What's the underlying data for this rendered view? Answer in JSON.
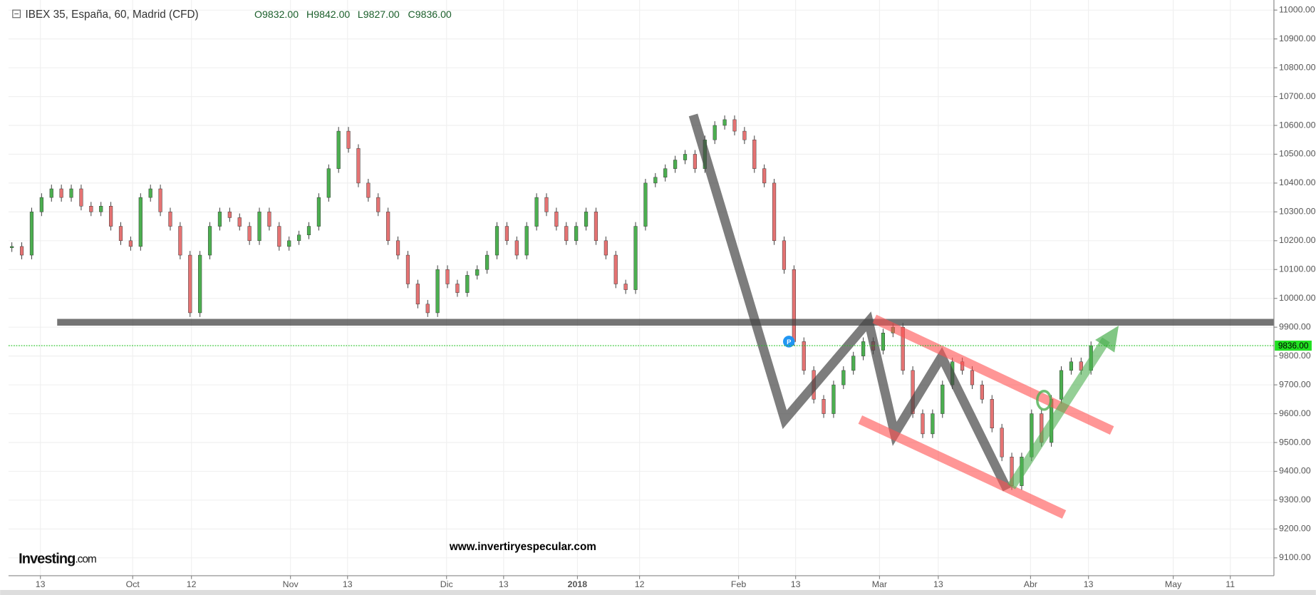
{
  "header": {
    "symbol": "IBEX 35, España, 60, Madrid (CFD)",
    "open": "O9832.00",
    "high": "H9842.00",
    "low": "L9827.00",
    "close": "C9836.00"
  },
  "watermark": "www.invertiryespecular.com",
  "logo": "Investing",
  "logo_suffix": ".com",
  "chart_data": {
    "type": "candlestick",
    "closes": [
      10180,
      10150,
      10300,
      10350,
      10380,
      10350,
      10380,
      10320,
      10300,
      10320,
      10250,
      10200,
      10180,
      10350,
      10380,
      10300,
      10250,
      10150,
      9950,
      10150,
      10250,
      10300,
      10280,
      10250,
      10200,
      10300,
      10250,
      10180,
      10200,
      10220,
      10250,
      10350,
      10450,
      10580,
      10520,
      10400,
      10350,
      10300,
      10200,
      10150,
      10050,
      9980,
      9950,
      10100,
      10050,
      10020,
      10080,
      10100,
      10150,
      10250,
      10200,
      10150,
      10250,
      10350,
      10300,
      10250,
      10200,
      10250,
      10300,
      10200,
      10150,
      10050,
      10030,
      10250,
      10400,
      10420,
      10450,
      10480,
      10500,
      10450,
      10550,
      10600,
      10620,
      10580,
      10550,
      10450,
      10400,
      10200,
      10100,
      9850,
      9750,
      9650,
      9600,
      9700,
      9750,
      9800,
      9850,
      9820,
      9880,
      9900,
      9750,
      9600,
      9530,
      9600,
      9700,
      9780,
      9750,
      9700,
      9650,
      9550,
      9450,
      9350,
      9450,
      9600,
      9500,
      9650,
      9750,
      9780,
      9750,
      9836
    ],
    "up_color": "#4caf50",
    "down_color": "#e57373",
    "xtick_labels": [
      "13",
      "Oct",
      "12",
      "Nov",
      "13",
      "Dic",
      "13",
      "2018",
      "12",
      "Feb",
      "13",
      "Mar",
      "13",
      "Abr",
      "13",
      "May",
      "11"
    ],
    "ylim": [
      9038,
      11035
    ],
    "yticks": [
      {
        "value": 9100,
        "label": "9100.00"
      },
      {
        "value": 9200,
        "label": "9200.00"
      },
      {
        "value": 9300,
        "label": "9300.00"
      },
      {
        "value": 9400,
        "label": "9400.00"
      },
      {
        "value": 9500,
        "label": "9500.00"
      },
      {
        "value": 9600,
        "label": "9600.00"
      },
      {
        "value": 9700,
        "label": "9700.00"
      },
      {
        "value": 9800,
        "label": "9800.00"
      },
      {
        "value": 9900,
        "label": "9900.00"
      },
      {
        "value": 10000,
        "label": "10000.00"
      },
      {
        "value": 10100,
        "label": "10100.00"
      },
      {
        "value": 10200,
        "label": "10200.00"
      },
      {
        "value": 10300,
        "label": "10300.00"
      },
      {
        "value": 10400,
        "label": "10400.00"
      },
      {
        "value": 10500,
        "label": "10500.00"
      },
      {
        "value": 10600,
        "label": "10600.00"
      },
      {
        "value": 10700,
        "label": "10700.00"
      },
      {
        "value": 10800,
        "label": "10800.00"
      },
      {
        "value": 10900,
        "label": "10900.00"
      },
      {
        "value": 11000,
        "label": "11000.00"
      }
    ],
    "last_price": {
      "value": 9836,
      "label": "9836.00"
    },
    "grid": true
  }
}
